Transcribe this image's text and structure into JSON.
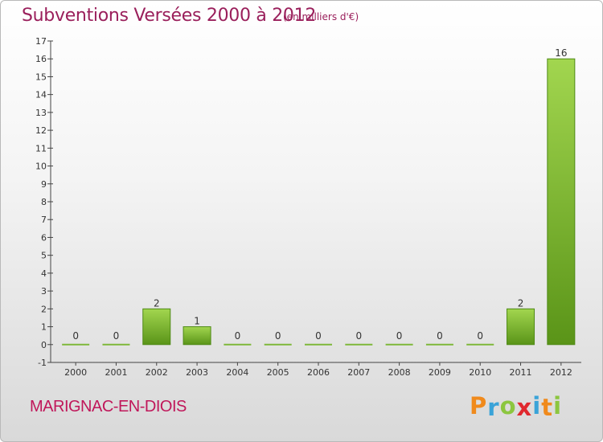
{
  "chart_data": {
    "type": "bar",
    "title": "Subventions Versées 2000 à 2012",
    "subtitle": "(en milliers d'€)",
    "categories": [
      "2000",
      "2001",
      "2002",
      "2003",
      "2004",
      "2005",
      "2006",
      "2007",
      "2008",
      "2009",
      "2010",
      "2011",
      "2012"
    ],
    "values": [
      0,
      0,
      2,
      1,
      0,
      0,
      0,
      0,
      0,
      0,
      0,
      2,
      16
    ],
    "ylim": [
      -1,
      17
    ],
    "yticks": [
      -1,
      0,
      1,
      2,
      3,
      4,
      5,
      6,
      7,
      8,
      9,
      10,
      11,
      12,
      13,
      14,
      15,
      16,
      17
    ],
    "grid": false,
    "bar_color": "#6fa82b"
  },
  "commune_name": "MARIGNAC-EN-DIOIS",
  "logo": {
    "letters": [
      "P",
      "r",
      "o",
      "x",
      "i",
      "t",
      "i"
    ],
    "colors": [
      "#f08a1c",
      "#3aa3d8",
      "#8cc63f",
      "#e0282e",
      "#3aa3d8",
      "#f08a1c",
      "#8cc63f"
    ]
  }
}
